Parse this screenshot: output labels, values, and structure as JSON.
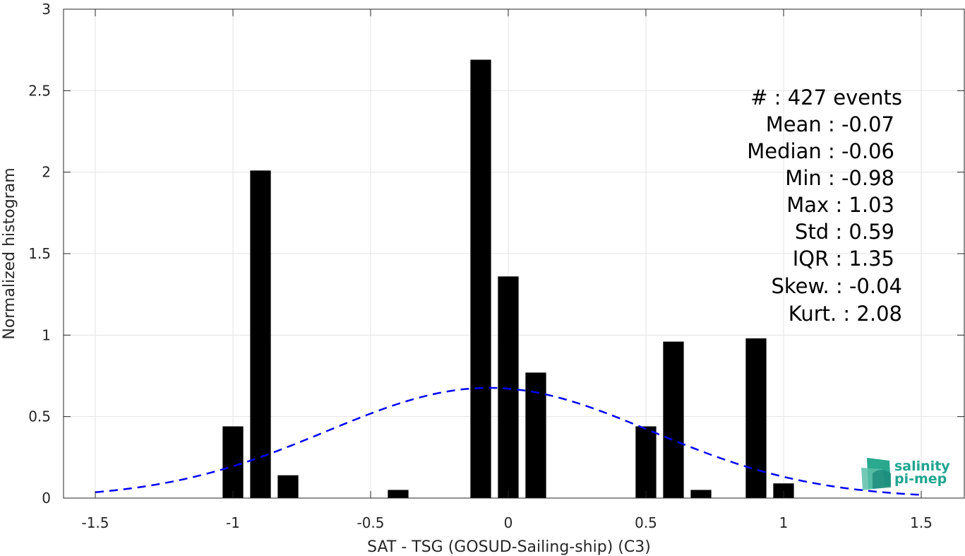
{
  "chart_data": {
    "type": "bar",
    "xlabel": "SAT - TSG (GOSUD-Sailing-ship) (C3)",
    "ylabel": "Normalized histogram",
    "xlim": [
      -1.5,
      1.5
    ],
    "ylim": [
      0,
      3
    ],
    "grid": true,
    "x_ticks": [
      {
        "value": -1.5,
        "label": "-1.5"
      },
      {
        "value": -1,
        "label": "-1"
      },
      {
        "value": -0.5,
        "label": "-0.5"
      },
      {
        "value": 0,
        "label": "0"
      },
      {
        "value": 0.5,
        "label": "0.5"
      },
      {
        "value": 1,
        "label": "1"
      },
      {
        "value": 1.5,
        "label": "1.5"
      }
    ],
    "y_ticks": [
      {
        "value": 0,
        "label": "0"
      },
      {
        "value": 0.5,
        "label": "0.5"
      },
      {
        "value": 1,
        "label": "1"
      },
      {
        "value": 1.5,
        "label": "1.5"
      },
      {
        "value": 2,
        "label": "2"
      },
      {
        "value": 2.5,
        "label": "2.5"
      },
      {
        "value": 3,
        "label": "3"
      }
    ],
    "bars": [
      {
        "x": -1.0,
        "value": 0.44
      },
      {
        "x": -0.9,
        "value": 2.01
      },
      {
        "x": -0.8,
        "value": 0.14
      },
      {
        "x": -0.4,
        "value": 0.05
      },
      {
        "x": -0.1,
        "value": 2.69
      },
      {
        "x": 0.0,
        "value": 1.36
      },
      {
        "x": 0.1,
        "value": 0.77
      },
      {
        "x": 0.5,
        "value": 0.44
      },
      {
        "x": 0.6,
        "value": 0.96
      },
      {
        "x": 0.7,
        "value": 0.05
      },
      {
        "x": 0.9,
        "value": 0.98
      },
      {
        "x": 1.0,
        "value": 0.09
      }
    ],
    "bar_width": 0.075,
    "bar_color": "#000000",
    "fit": {
      "type": "normal",
      "mean": -0.07,
      "std": 0.59,
      "x_range": [
        -1.5,
        1.5
      ],
      "color": "#0000ff",
      "style": "dashed"
    },
    "stats_text": [
      "#  : 427 events",
      "Mean : -0.07",
      "Median : -0.06",
      "Min : -0.98",
      "Max : 1.03",
      "Std : 0.59",
      "IQR : 1.35",
      "Skew. : -0.04",
      "Kurt. : 2.08"
    ]
  },
  "logo": {
    "line1": "salinity",
    "line2": "pi-mep",
    "color": "#1fa58f"
  }
}
